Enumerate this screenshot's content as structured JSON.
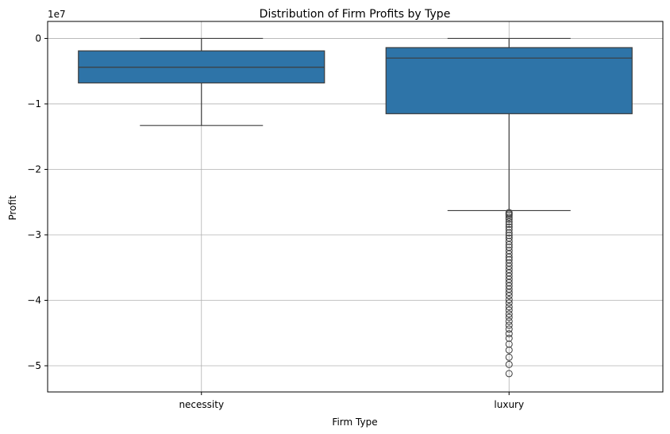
{
  "chart_data": {
    "type": "box",
    "title": "Distribution of Firm Profits by Type",
    "xlabel": "Firm Type",
    "ylabel": "Profit",
    "y_offset_label": "1e7",
    "y_scale": 10000000,
    "ylim": [
      -54000000,
      2600000
    ],
    "yticks": [
      0,
      -10000000,
      -20000000,
      -30000000,
      -40000000,
      -50000000
    ],
    "ytick_labels": [
      "0",
      "−1",
      "−2",
      "−3",
      "−4",
      "−5"
    ],
    "categories": [
      "necessity",
      "luxury"
    ],
    "grid": true,
    "color": "#2e74a8",
    "boxes": [
      {
        "category": "necessity",
        "whisker_low": -13300000,
        "q1": -6800000,
        "median": -4400000,
        "q3": -1900000,
        "whisker_high": 0,
        "outliers": []
      },
      {
        "category": "luxury",
        "whisker_low": -26300000,
        "q1": -11500000,
        "median": -3000000,
        "q3": -1400000,
        "whisker_high": 0,
        "outliers": [
          -26600000,
          -26800000,
          -27000000,
          -27300000,
          -27600000,
          -28000000,
          -28400000,
          -28800000,
          -29200000,
          -29700000,
          -30100000,
          -30500000,
          -31000000,
          -31500000,
          -31900000,
          -32400000,
          -32900000,
          -33400000,
          -33800000,
          -34300000,
          -34800000,
          -35300000,
          -35800000,
          -36300000,
          -36800000,
          -37300000,
          -37800000,
          -38300000,
          -38800000,
          -39300000,
          -39900000,
          -40400000,
          -41000000,
          -41500000,
          -42100000,
          -42600000,
          -43200000,
          -43800000,
          -44400000,
          -45100000,
          -45800000,
          -46700000,
          -47600000,
          -48700000,
          -49800000,
          -51200000
        ]
      }
    ]
  }
}
